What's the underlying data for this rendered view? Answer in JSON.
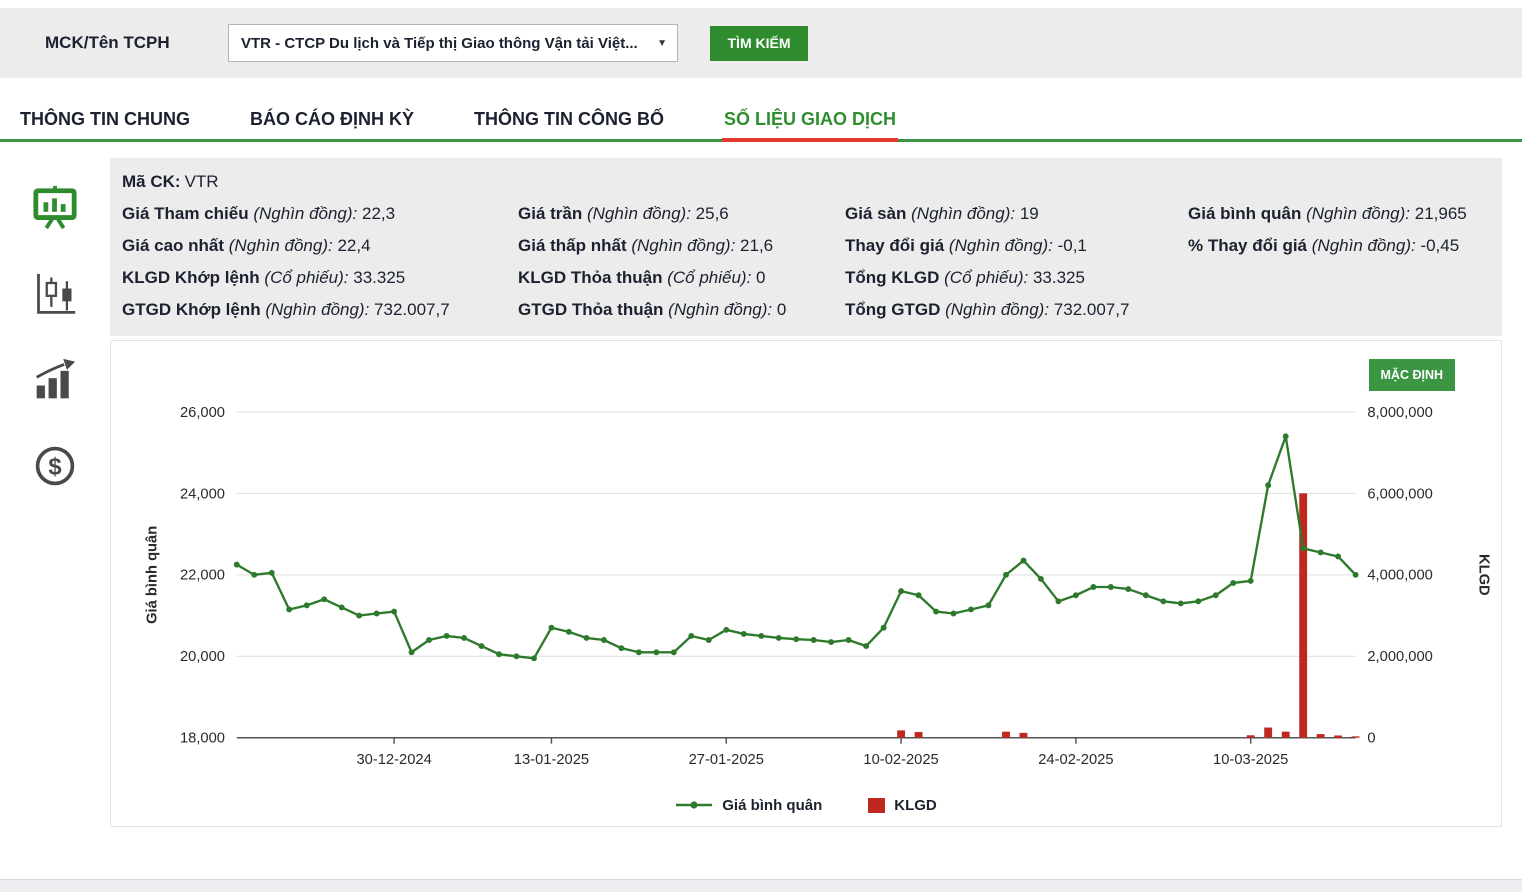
{
  "colors": {
    "accent_green": "#2e8b2e",
    "tab_active_green": "#2f8f2f",
    "tab_underline_red": "#e0392e",
    "tab_bar_green": "#3a9342",
    "line_green": "#2d7a2d",
    "bar_red": "#c0281f",
    "panel_gray": "#ececec"
  },
  "search_bar": {
    "label": "MCK/Tên TCPH",
    "dropdown_value": "VTR - CTCP Du lịch và Tiếp thị Giao thông Vận tải Việt...",
    "search_button_label": "TÌM KIẾM"
  },
  "tabs": [
    {
      "id": "thong-tin-chung",
      "label": "THÔNG TIN CHUNG",
      "active": false
    },
    {
      "id": "bao-cao-dinh-ky",
      "label": "BÁO CÁO ĐỊNH KỲ",
      "active": false
    },
    {
      "id": "thong-tin-cong-bo",
      "label": "THÔNG TIN CÔNG BỐ",
      "active": false
    },
    {
      "id": "so-lieu-giao-dich",
      "label": "SỐ LIỆU GIAO DỊCH",
      "active": true
    }
  ],
  "sidebar": {
    "icons": [
      "presentation-chart",
      "candlestick-chart",
      "bar-chart-growth",
      "money-circle"
    ]
  },
  "summary": {
    "ticker_label": "Mã CK:",
    "ticker_value": "VTR",
    "rows": [
      [
        {
          "label": "Giá Tham chiếu",
          "unit": "(Nghìn đồng):",
          "value": "22,3"
        },
        {
          "label": "Giá trần",
          "unit": "(Nghìn đồng):",
          "value": "25,6"
        },
        {
          "label": "Giá sàn",
          "unit": "(Nghìn đồng):",
          "value": "19"
        },
        {
          "label": "Giá bình quân",
          "unit": "(Nghìn đồng):",
          "value": "21,965"
        }
      ],
      [
        {
          "label": "Giá cao nhất",
          "unit": "(Nghìn đồng):",
          "value": "22,4"
        },
        {
          "label": "Giá thấp nhất",
          "unit": "(Nghìn đồng):",
          "value": "21,6"
        },
        {
          "label": "Thay đổi giá",
          "unit": "(Nghìn đồng):",
          "value": "-0,1"
        },
        {
          "label": "% Thay đổi giá",
          "unit": "(Nghìn đồng):",
          "value": "-0,45"
        }
      ],
      [
        {
          "label": "KLGD Khớp lệnh",
          "unit": "(Cổ phiếu):",
          "value": "33.325"
        },
        {
          "label": "KLGD Thỏa thuận",
          "unit": "(Cổ phiếu):",
          "value": "0"
        },
        {
          "label": "Tổng KLGD",
          "unit": "(Cổ phiếu):",
          "value": "33.325"
        },
        null
      ],
      [
        {
          "label": "GTGD Khớp lệnh",
          "unit": "(Nghìn đồng):",
          "value": "732.007,7"
        },
        {
          "label": "GTGD Thỏa thuận",
          "unit": "(Nghìn đồng):",
          "value": "0"
        },
        {
          "label": "Tổng GTGD",
          "unit": "(Nghìn đồng):",
          "value": "732.007,7"
        },
        null
      ]
    ]
  },
  "chart": {
    "default_button_label": "MẶC ĐỊNH"
  },
  "chart_data": {
    "type": "line+bar",
    "x": [
      "17-12-2024",
      "18-12-2024",
      "19-12-2024",
      "20-12-2024",
      "23-12-2024",
      "24-12-2024",
      "25-12-2024",
      "26-12-2024",
      "27-12-2024",
      "30-12-2024",
      "31-12-2024",
      "02-01-2025",
      "03-01-2025",
      "06-01-2025",
      "07-01-2025",
      "08-01-2025",
      "09-01-2025",
      "10-01-2025",
      "13-01-2025",
      "14-01-2025",
      "15-01-2025",
      "16-01-2025",
      "17-01-2025",
      "20-01-2025",
      "21-01-2025",
      "22-01-2025",
      "23-01-2025",
      "24-01-2025",
      "27-01-2025",
      "28-01-2025",
      "29-01-2025",
      "30-01-2025",
      "31-01-2025",
      "03-02-2025",
      "04-02-2025",
      "05-02-2025",
      "06-02-2025",
      "07-02-2025",
      "10-02-2025",
      "11-02-2025",
      "12-02-2025",
      "13-02-2025",
      "14-02-2025",
      "17-02-2025",
      "18-02-2025",
      "19-02-2025",
      "20-02-2025",
      "21-02-2025",
      "24-02-2025",
      "25-02-2025",
      "26-02-2025",
      "27-02-2025",
      "28-02-2025",
      "03-03-2025",
      "04-03-2025",
      "05-03-2025",
      "06-03-2025",
      "07-03-2025",
      "10-03-2025",
      "11-03-2025",
      "12-03-2025",
      "13-03-2025",
      "14-03-2025",
      "17-03-2025",
      "18-03-2025"
    ],
    "series": [
      {
        "name": "Giá bình quân",
        "type": "line",
        "axis": "left",
        "color": "#2d7a2d",
        "values": [
          22250,
          22000,
          22050,
          21150,
          21250,
          21400,
          21200,
          21000,
          21050,
          21100,
          20100,
          20400,
          20500,
          20450,
          20250,
          20050,
          20000,
          19950,
          20700,
          20600,
          20450,
          20400,
          20200,
          20100,
          20100,
          20100,
          20500,
          20400,
          20650,
          20550,
          20500,
          20450,
          20420,
          20400,
          20350,
          20400,
          20250,
          20700,
          21600,
          21500,
          21100,
          21050,
          21150,
          21250,
          22000,
          22350,
          21900,
          21350,
          21500,
          21700,
          21700,
          21650,
          21500,
          21350,
          21300,
          21350,
          21500,
          21800,
          21850,
          24200,
          25400,
          22650,
          22550,
          22450,
          22000
        ]
      },
      {
        "name": "KLGD",
        "type": "bar",
        "axis": "right",
        "color": "#c0281f",
        "values": [
          12000,
          8500,
          15000,
          18000,
          9000,
          5000,
          7500,
          11000,
          9500,
          14000,
          19000,
          18000,
          12000,
          9000,
          7000,
          16000,
          10000,
          8000,
          15000,
          15000,
          9000,
          7000,
          12000,
          10000,
          6000,
          5000,
          18000,
          11000,
          16000,
          9000,
          8000,
          7000,
          6000,
          10000,
          9000,
          12000,
          8000,
          19000,
          180000,
          140000,
          18000,
          16000,
          15000,
          18000,
          150000,
          120000,
          19000,
          15000,
          18000,
          17000,
          16000,
          14000,
          15000,
          16000,
          15000,
          18000,
          19000,
          19000,
          60000,
          250000,
          150000,
          6000000,
          90000,
          55000,
          33325
        ]
      }
    ],
    "left_axis": {
      "label": "Giá bình quân",
      "min": 18000,
      "max": 26000,
      "ticks": [
        18000,
        20000,
        22000,
        24000,
        26000
      ]
    },
    "right_axis": {
      "label": "KLGD",
      "min": 0,
      "max": 8000000,
      "ticks": [
        0,
        2000000,
        4000000,
        6000000,
        8000000
      ]
    },
    "x_tick_labels": [
      "30-12-2024",
      "13-01-2025",
      "27-01-2025",
      "10-02-2025",
      "24-02-2025",
      "10-03-2025"
    ],
    "grid": "horizontal",
    "legend_position": "bottom"
  }
}
